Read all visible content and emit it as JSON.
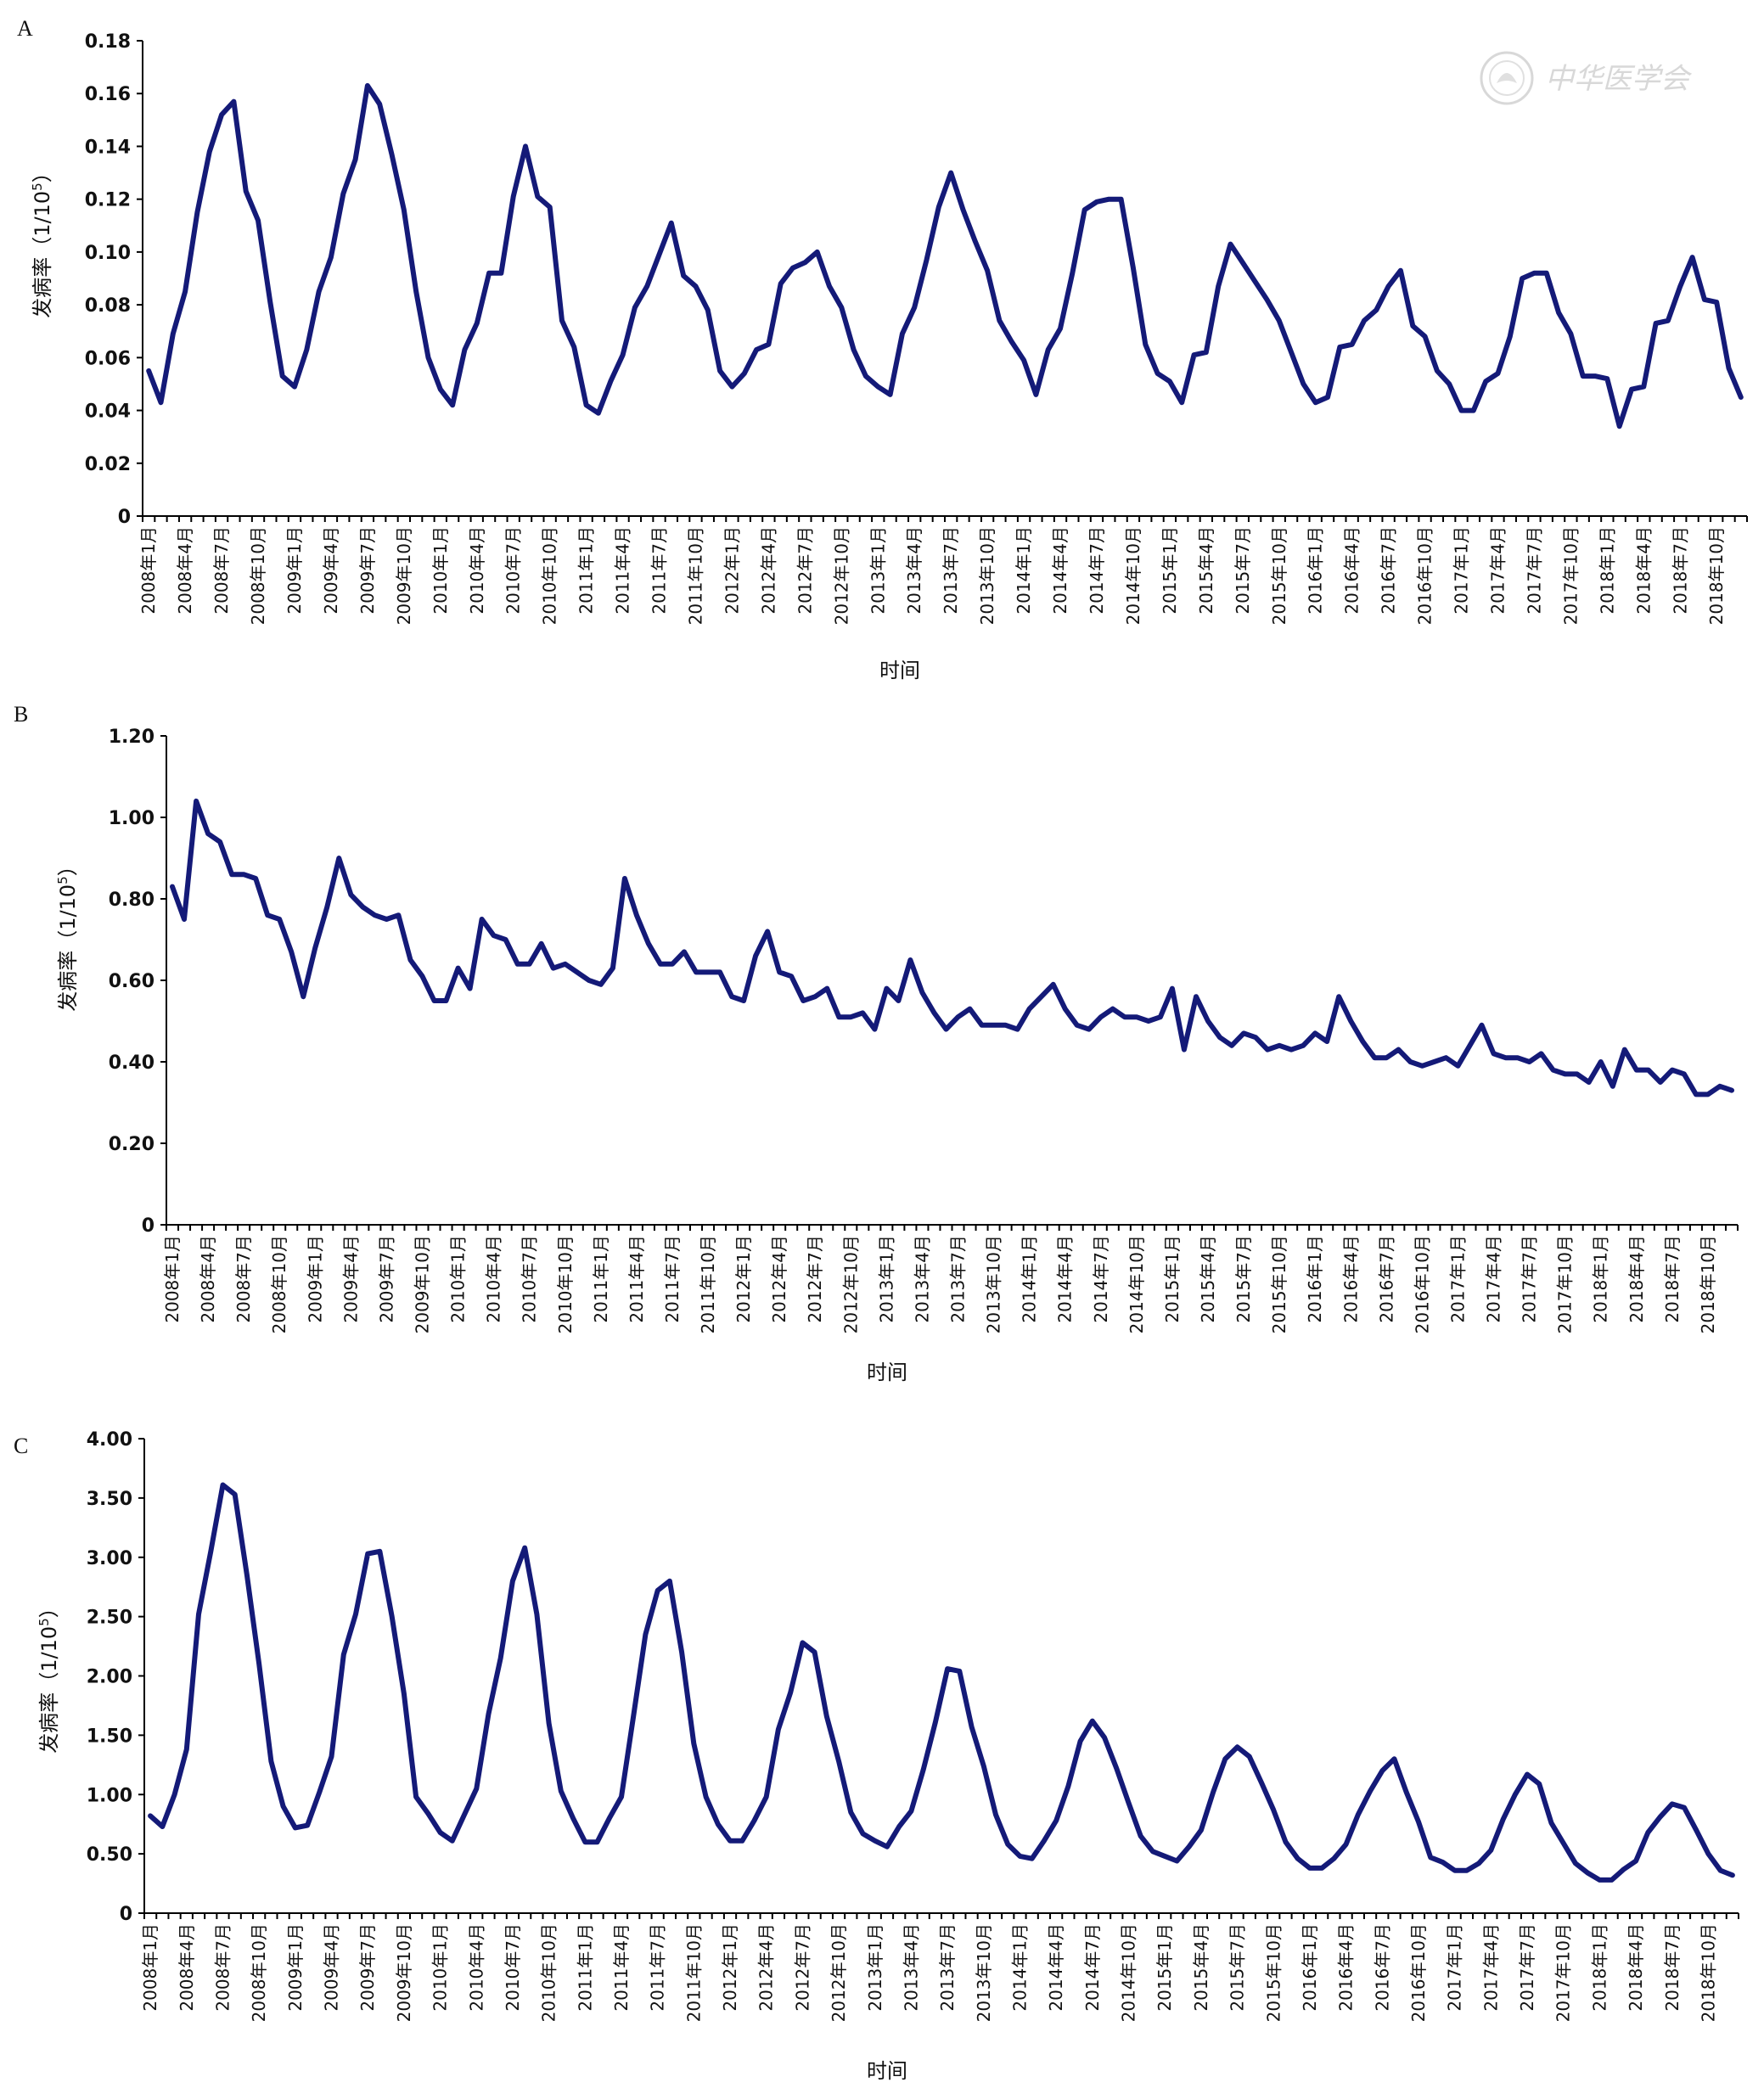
{
  "watermark": {
    "text": "中华医学会",
    "icon": "medical-association-seal"
  },
  "x_tick_labels": [
    "2008年1月",
    "2008年4月",
    "2008年7月",
    "2008年10月",
    "2009年1月",
    "2009年4月",
    "2009年7月",
    "2009年10月",
    "2010年1月",
    "2010年4月",
    "2010年7月",
    "2010年10月",
    "2011年1月",
    "2011年4月",
    "2011年7月",
    "2011年10月",
    "2012年1月",
    "2012年4月",
    "2012年7月",
    "2012年10月",
    "2013年1月",
    "2013年4月",
    "2013年7月",
    "2013年10月",
    "2014年1月",
    "2014年4月",
    "2014年7月",
    "2014年10月",
    "2015年1月",
    "2015年4月",
    "2015年7月",
    "2015年10月",
    "2016年1月",
    "2016年4月",
    "2016年7月",
    "2016年10月",
    "2017年1月",
    "2017年4月",
    "2017年7月",
    "2017年10月",
    "2018年1月",
    "2018年4月",
    "2018年7月",
    "2018年10月"
  ],
  "colors": {
    "line": "#141a78",
    "axis": "#000000"
  },
  "chart_data": [
    {
      "panel": "A",
      "type": "line",
      "xlabel": "时间",
      "ylabel_main": "发病率（1/10",
      "ylabel_sup": "5",
      "ylabel_end": "）",
      "ylim": [
        0,
        0.18
      ],
      "yticks": [
        "0",
        "0.02",
        "0.04",
        "0.06",
        "0.08",
        "0.10",
        "0.12",
        "0.14",
        "0.16",
        "0.18"
      ],
      "grid": false,
      "values": [
        0.055,
        0.043,
        0.069,
        0.085,
        0.115,
        0.138,
        0.152,
        0.157,
        0.123,
        0.112,
        0.081,
        0.053,
        0.049,
        0.063,
        0.085,
        0.098,
        0.122,
        0.135,
        0.163,
        0.156,
        0.137,
        0.116,
        0.085,
        0.06,
        0.048,
        0.042,
        0.063,
        0.073,
        0.092,
        0.092,
        0.121,
        0.14,
        0.121,
        0.117,
        0.074,
        0.064,
        0.042,
        0.039,
        0.051,
        0.061,
        0.079,
        0.087,
        0.099,
        0.111,
        0.091,
        0.087,
        0.078,
        0.055,
        0.049,
        0.054,
        0.063,
        0.065,
        0.088,
        0.094,
        0.096,
        0.1,
        0.087,
        0.079,
        0.063,
        0.053,
        0.049,
        0.046,
        0.069,
        0.079,
        0.097,
        0.117,
        0.13,
        0.116,
        0.104,
        0.093,
        0.074,
        0.066,
        0.059,
        0.046,
        0.063,
        0.071,
        0.092,
        0.116,
        0.119,
        0.12,
        0.12,
        0.094,
        0.065,
        0.054,
        0.051,
        0.043,
        0.061,
        0.062,
        0.087,
        0.103,
        0.096,
        0.089,
        0.082,
        0.074,
        0.062,
        0.05,
        0.043,
        0.045,
        0.064,
        0.065,
        0.074,
        0.078,
        0.087,
        0.093,
        0.072,
        0.068,
        0.055,
        0.05,
        0.04,
        0.04,
        0.051,
        0.054,
        0.068,
        0.09,
        0.092,
        0.092,
        0.077,
        0.069,
        0.053,
        0.053,
        0.052,
        0.034,
        0.048,
        0.049,
        0.073,
        0.074,
        0.087,
        0.098,
        0.082,
        0.081,
        0.056,
        0.045
      ]
    },
    {
      "panel": "B",
      "type": "line",
      "xlabel": "时间",
      "ylabel_main": "发病率（1/10",
      "ylabel_sup": "5",
      "ylabel_end": "）",
      "ylim": [
        0,
        1.2
      ],
      "yticks": [
        "0",
        "0.20",
        "0.40",
        "0.60",
        "0.80",
        "1.00",
        "1.20"
      ],
      "grid": false,
      "values": [
        0.83,
        0.75,
        1.04,
        0.96,
        0.94,
        0.86,
        0.86,
        0.85,
        0.76,
        0.75,
        0.67,
        0.56,
        0.68,
        0.78,
        0.9,
        0.81,
        0.78,
        0.76,
        0.75,
        0.76,
        0.65,
        0.61,
        0.55,
        0.55,
        0.63,
        0.58,
        0.75,
        0.71,
        0.7,
        0.64,
        0.64,
        0.69,
        0.63,
        0.64,
        0.62,
        0.6,
        0.59,
        0.63,
        0.85,
        0.76,
        0.69,
        0.64,
        0.64,
        0.67,
        0.62,
        0.62,
        0.62,
        0.56,
        0.55,
        0.66,
        0.72,
        0.62,
        0.61,
        0.55,
        0.56,
        0.58,
        0.51,
        0.51,
        0.52,
        0.48,
        0.58,
        0.55,
        0.65,
        0.57,
        0.52,
        0.48,
        0.51,
        0.53,
        0.49,
        0.49,
        0.49,
        0.48,
        0.53,
        0.56,
        0.59,
        0.53,
        0.49,
        0.48,
        0.51,
        0.53,
        0.51,
        0.51,
        0.5,
        0.51,
        0.58,
        0.43,
        0.56,
        0.5,
        0.46,
        0.44,
        0.47,
        0.46,
        0.43,
        0.44,
        0.43,
        0.44,
        0.47,
        0.45,
        0.56,
        0.5,
        0.45,
        0.41,
        0.41,
        0.43,
        0.4,
        0.39,
        0.4,
        0.41,
        0.39,
        0.44,
        0.49,
        0.42,
        0.41,
        0.41,
        0.4,
        0.42,
        0.38,
        0.37,
        0.37,
        0.35,
        0.4,
        0.34,
        0.43,
        0.38,
        0.38,
        0.35,
        0.38,
        0.37,
        0.32,
        0.32,
        0.34,
        0.33
      ]
    },
    {
      "panel": "C",
      "type": "line",
      "xlabel": "时间",
      "ylabel_main": "发病率（1/10",
      "ylabel_sup": "5",
      "ylabel_end": "）",
      "ylim": [
        0,
        4.0
      ],
      "yticks": [
        "0",
        "0.50",
        "1.00",
        "1.50",
        "2.00",
        "2.50",
        "3.00",
        "3.50",
        "4.00"
      ],
      "grid": false,
      "values": [
        0.82,
        0.73,
        1.0,
        1.38,
        2.52,
        3.05,
        3.61,
        3.53,
        2.85,
        2.1,
        1.28,
        0.9,
        0.72,
        0.74,
        1.02,
        1.32,
        2.18,
        2.52,
        3.03,
        3.05,
        2.5,
        1.85,
        0.98,
        0.84,
        0.68,
        0.61,
        0.83,
        1.05,
        1.68,
        2.15,
        2.8,
        3.08,
        2.52,
        1.6,
        1.03,
        0.8,
        0.6,
        0.6,
        0.8,
        0.98,
        1.66,
        2.35,
        2.72,
        2.8,
        2.2,
        1.43,
        0.98,
        0.75,
        0.61,
        0.61,
        0.78,
        0.98,
        1.55,
        1.86,
        2.28,
        2.2,
        1.66,
        1.28,
        0.85,
        0.67,
        0.61,
        0.56,
        0.73,
        0.86,
        1.21,
        1.61,
        2.06,
        2.04,
        1.57,
        1.24,
        0.83,
        0.58,
        0.48,
        0.46,
        0.61,
        0.78,
        1.07,
        1.45,
        1.62,
        1.48,
        1.22,
        0.93,
        0.65,
        0.52,
        0.48,
        0.44,
        0.56,
        0.7,
        1.02,
        1.3,
        1.4,
        1.32,
        1.1,
        0.87,
        0.6,
        0.46,
        0.38,
        0.38,
        0.46,
        0.58,
        0.83,
        1.03,
        1.2,
        1.3,
        1.02,
        0.77,
        0.47,
        0.43,
        0.36,
        0.36,
        0.42,
        0.53,
        0.79,
        1.0,
        1.17,
        1.09,
        0.76,
        0.59,
        0.42,
        0.34,
        0.28,
        0.28,
        0.37,
        0.44,
        0.68,
        0.81,
        0.92,
        0.89,
        0.7,
        0.5,
        0.36,
        0.32
      ]
    }
  ]
}
